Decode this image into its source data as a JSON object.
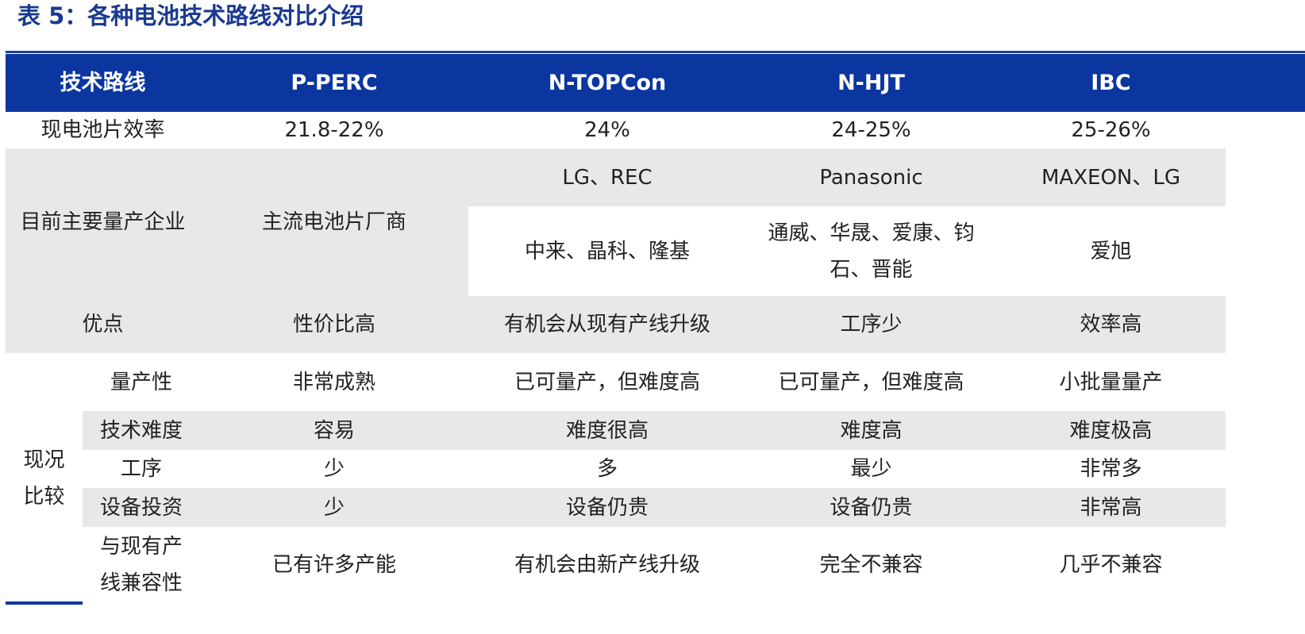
{
  "title": "表 5：各种电池技术路线对比介绍",
  "header": [
    "技术路线",
    "P-PERC",
    "N-TOPCon",
    "N-HJT",
    "IBC"
  ],
  "efficiency": {
    "label": "现电池片效率",
    "values": [
      "21.8-22%",
      "24%",
      "24-25%",
      "25-26%"
    ]
  },
  "producers": {
    "label": "目前主要量产企业",
    "perc": "主流电池片厂商",
    "row1": [
      "LG、REC",
      "Panasonic",
      "MAXEON、LG"
    ],
    "row2_topcon": "中来、晶科、隆基",
    "row2_hjt_line1": "通威、华晟、爱康、钧",
    "row2_hjt_line2": "石、晋能",
    "row2_ibc": "爱旭"
  },
  "advantages": {
    "label": "优点",
    "values": [
      "性价比高",
      "有机会从现有产线升级",
      "工序少",
      "效率高"
    ]
  },
  "comparison": {
    "group_label_line1": "现况",
    "group_label_line2": "比较",
    "rows": [
      {
        "label": "量产性",
        "values": [
          "非常成熟",
          "已可量产，但难度高",
          "已可量产，但难度高",
          "小批量量产"
        ]
      },
      {
        "label": "技术难度",
        "values": [
          "容易",
          "难度很高",
          "难度高",
          "难度极高"
        ]
      },
      {
        "label": "工序",
        "values": [
          "少",
          "多",
          "最少",
          "非常多"
        ]
      },
      {
        "label": "设备投资",
        "values": [
          "少",
          "设备仍贵",
          "设备仍贵",
          "非常高"
        ]
      }
    ],
    "compat_label_line1": "与现有产",
    "compat_label_line2": "线兼容性",
    "compat_values": [
      "已有许多产能",
      "有机会由新产线升级",
      "完全不兼容",
      "几乎不兼容"
    ]
  }
}
